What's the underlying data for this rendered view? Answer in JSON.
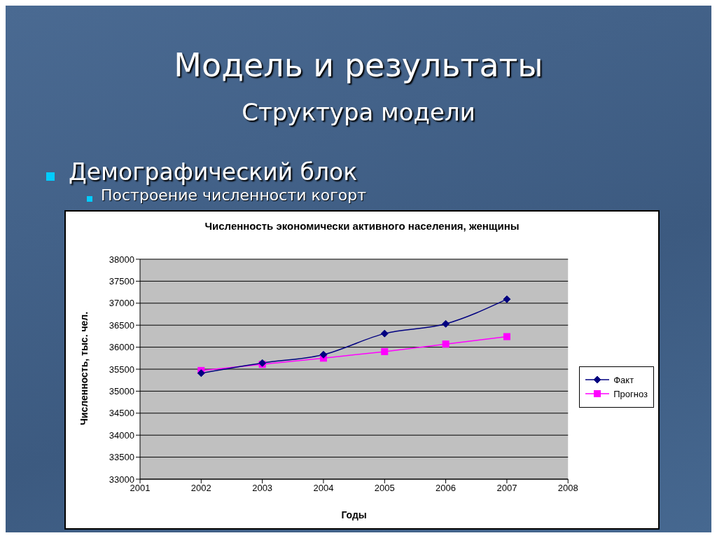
{
  "chart_data": {
    "type": "line",
    "title": "Численность экономически активного населения, женщины",
    "xlabel": "Годы",
    "ylabel": "Численность, тыс. чел.",
    "annotations": [
      "Модель и результаты",
      "Структура модели",
      "Демографический блок",
      "Построение численности когорт"
    ],
    "x": [
      2002,
      2003,
      2004,
      2005,
      2006,
      2007
    ],
    "series": [
      {
        "name": "Факт",
        "color": "#000080",
        "marker": "diamond",
        "values": [
          35410,
          35640,
          35830,
          36310,
          36530,
          37090
        ]
      },
      {
        "name": "Прогноз",
        "color": "#ff00ff",
        "marker": "square",
        "values": [
          35470,
          35610,
          35750,
          35900,
          36070,
          36240
        ]
      }
    ],
    "xlim": [
      2001,
      2008
    ],
    "xticks": [
      2001,
      2002,
      2003,
      2004,
      2005,
      2006,
      2007,
      2008
    ],
    "ylim": [
      33000,
      38000
    ],
    "yticks": [
      33000,
      33500,
      34000,
      34500,
      35000,
      35500,
      36000,
      36500,
      37000,
      37500,
      38000
    ],
    "grid": "y",
    "legend": "right"
  }
}
